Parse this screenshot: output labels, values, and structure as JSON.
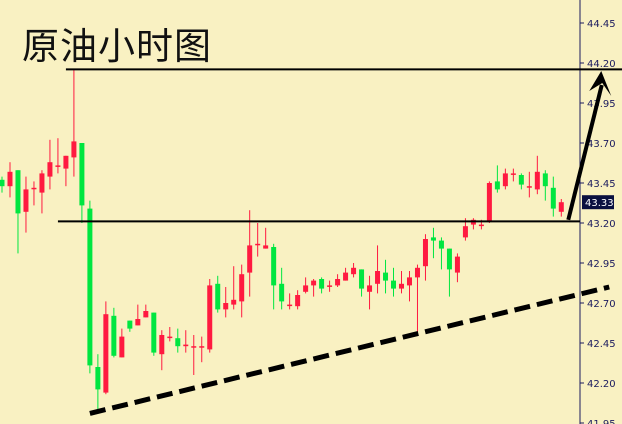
{
  "chart_data": {
    "type": "candlestick",
    "title": "原油小时图",
    "xlabel": "",
    "ylabel": "",
    "ylim": [
      41.95,
      44.55
    ],
    "y_ticks": [
      "44.45",
      "44.20",
      "43.95",
      "43.70",
      "43.45",
      "43.20",
      "42.95",
      "42.70",
      "42.45",
      "42.20",
      "41.95"
    ],
    "grid": false,
    "colors": {
      "up": "#ff1a40",
      "down": "#00e640",
      "background": "#f9f1c2",
      "axis": "#1a1a5e",
      "lines": "#000000"
    },
    "last_price": "43.33",
    "ohlc": [
      [
        43.47,
        43.49,
        43.39,
        43.43
      ],
      [
        43.43,
        43.58,
        43.36,
        43.52
      ],
      [
        43.53,
        43.53,
        43.01,
        43.26
      ],
      [
        43.27,
        43.49,
        43.14,
        43.41
      ],
      [
        43.42,
        43.46,
        43.31,
        43.42
      ],
      [
        43.39,
        43.53,
        43.26,
        43.51
      ],
      [
        43.49,
        43.72,
        43.41,
        43.58
      ],
      [
        43.56,
        43.73,
        43.51,
        43.56
      ],
      [
        43.54,
        43.62,
        43.43,
        43.62
      ],
      [
        43.61,
        44.16,
        43.49,
        43.71
      ],
      [
        43.7,
        43.7,
        43.2,
        43.31
      ],
      [
        43.29,
        43.34,
        42.26,
        42.31
      ],
      [
        42.3,
        42.38,
        42.02,
        42.16
      ],
      [
        42.14,
        42.71,
        42.13,
        42.63
      ],
      [
        42.62,
        42.67,
        42.36,
        42.37
      ],
      [
        42.36,
        42.54,
        42.36,
        42.49
      ],
      [
        42.59,
        42.59,
        42.52,
        42.54
      ],
      [
        42.56,
        42.69,
        42.56,
        42.6
      ],
      [
        42.61,
        42.69,
        42.61,
        42.65
      ],
      [
        42.64,
        42.64,
        42.37,
        42.39
      ],
      [
        42.38,
        42.53,
        42.28,
        42.5
      ],
      [
        42.49,
        42.55,
        42.46,
        42.49
      ],
      [
        42.48,
        42.54,
        42.39,
        42.43
      ],
      [
        42.43,
        42.53,
        42.39,
        42.44
      ],
      [
        42.43,
        42.5,
        42.25,
        42.43
      ],
      [
        42.43,
        42.49,
        42.33,
        42.43
      ],
      [
        42.41,
        42.85,
        42.39,
        42.81
      ],
      [
        42.82,
        42.87,
        42.64,
        42.66
      ],
      [
        42.66,
        42.8,
        42.61,
        42.7
      ],
      [
        42.69,
        42.93,
        42.66,
        42.72
      ],
      [
        42.71,
        42.94,
        42.61,
        42.88
      ],
      [
        42.89,
        43.28,
        42.74,
        43.06
      ],
      [
        43.07,
        43.2,
        42.99,
        43.07
      ],
      [
        43.04,
        43.17,
        43.04,
        43.06
      ],
      [
        43.05,
        43.07,
        42.66,
        42.81
      ],
      [
        42.82,
        42.92,
        42.66,
        42.71
      ],
      [
        42.69,
        42.76,
        42.66,
        42.69
      ],
      [
        42.68,
        42.78,
        42.66,
        42.75
      ],
      [
        42.77,
        42.86,
        42.76,
        42.81
      ],
      [
        42.81,
        42.85,
        42.74,
        42.84
      ],
      [
        42.85,
        42.86,
        42.76,
        42.79
      ],
      [
        42.81,
        42.84,
        42.77,
        42.81
      ],
      [
        42.81,
        42.88,
        42.8,
        42.85
      ],
      [
        42.84,
        42.92,
        42.84,
        42.89
      ],
      [
        42.88,
        42.95,
        42.86,
        42.92
      ],
      [
        42.91,
        42.91,
        42.74,
        42.79
      ],
      [
        42.77,
        42.87,
        42.66,
        42.81
      ],
      [
        42.82,
        43.06,
        42.76,
        42.9
      ],
      [
        42.89,
        42.97,
        42.76,
        42.84
      ],
      [
        42.84,
        42.92,
        42.74,
        42.79
      ],
      [
        42.79,
        42.9,
        42.76,
        42.82
      ],
      [
        42.81,
        42.9,
        42.71,
        42.86
      ],
      [
        42.86,
        42.94,
        42.51,
        42.92
      ],
      [
        42.93,
        43.13,
        42.84,
        43.1
      ],
      [
        43.11,
        43.17,
        42.98,
        43.09
      ],
      [
        43.09,
        43.11,
        42.91,
        43.04
      ],
      [
        43.04,
        43.04,
        42.74,
        42.91
      ],
      [
        42.89,
        43.01,
        42.83,
        42.99
      ],
      [
        43.11,
        43.23,
        43.09,
        43.18
      ],
      [
        43.19,
        43.23,
        43.16,
        43.22
      ],
      [
        43.19,
        43.22,
        43.16,
        43.19
      ],
      [
        43.21,
        43.46,
        43.2,
        43.45
      ],
      [
        43.46,
        43.56,
        43.39,
        43.41
      ],
      [
        43.43,
        43.54,
        43.41,
        43.51
      ],
      [
        43.51,
        43.54,
        43.46,
        43.51
      ],
      [
        43.5,
        43.51,
        43.41,
        43.44
      ],
      [
        43.43,
        43.52,
        43.36,
        43.43
      ],
      [
        43.41,
        43.62,
        43.38,
        43.52
      ],
      [
        43.51,
        43.53,
        43.34,
        43.43
      ],
      [
        43.42,
        43.49,
        43.24,
        43.29
      ],
      [
        43.27,
        43.35,
        43.24,
        43.33
      ]
    ],
    "annotations": {
      "resistance_line": {
        "price": 44.16,
        "from_index": 8
      },
      "support_line": {
        "price": 43.21,
        "from_index": 7
      },
      "trendline_dashed": {
        "from": [
          11,
          42.01
        ],
        "to": [
          76,
          42.8
        ]
      },
      "arrow": {
        "from": [
          71,
          43.22
        ],
        "to": [
          75,
          44.15
        ]
      }
    }
  }
}
